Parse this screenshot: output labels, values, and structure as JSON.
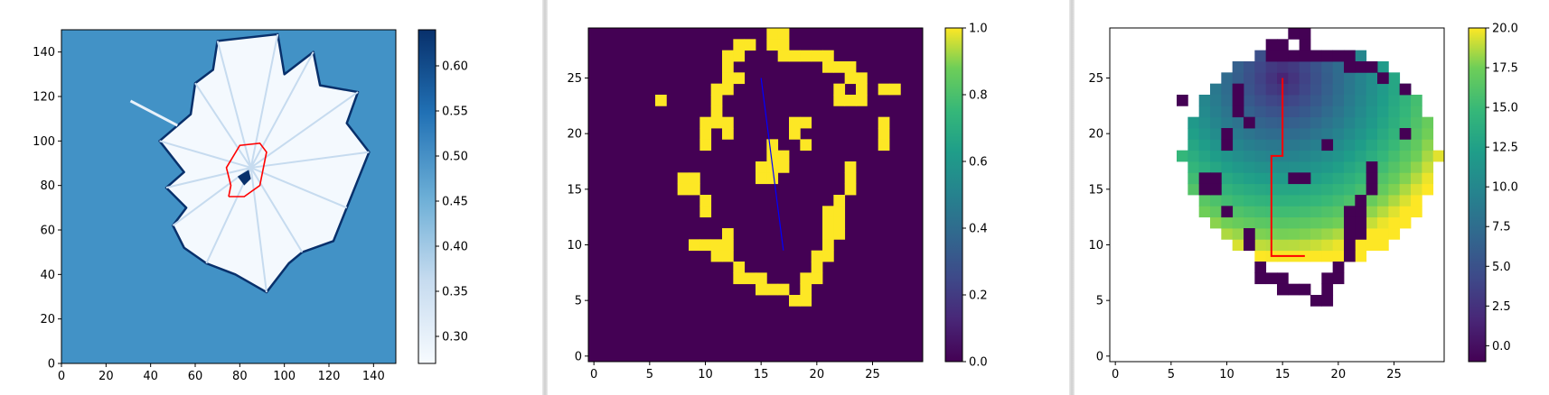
{
  "chart_data": [
    {
      "type": "heatmap",
      "title": "",
      "xlabel": "",
      "ylabel": "",
      "xlim": [
        0,
        150
      ],
      "ylim": [
        0,
        150
      ],
      "xticks": [
        "0",
        "20",
        "40",
        "60",
        "80",
        "100",
        "120",
        "140"
      ],
      "yticks": [
        "0",
        "20",
        "40",
        "60",
        "80",
        "100",
        "120",
        "140"
      ],
      "colormap": "Blues",
      "colorbar": {
        "range": [
          0.27,
          0.64
        ],
        "ticks": [
          "0.30",
          "0.35",
          "0.40",
          "0.45",
          "0.50",
          "0.55",
          "0.60"
        ]
      },
      "background_value": 0.5,
      "colors": {
        "background": "#4292c6",
        "free": "#f4f9fe",
        "obstacle": "#08306b",
        "path": "#ff0000"
      },
      "free_region": [
        [
          70,
          145
        ],
        [
          97,
          148
        ],
        [
          100,
          130
        ],
        [
          113,
          140
        ],
        [
          116,
          125
        ],
        [
          133,
          122
        ],
        [
          128,
          108
        ],
        [
          138,
          95
        ],
        [
          128,
          70
        ],
        [
          122,
          55
        ],
        [
          108,
          50
        ],
        [
          102,
          45
        ],
        [
          92,
          32
        ],
        [
          78,
          40
        ],
        [
          65,
          45
        ],
        [
          55,
          52
        ],
        [
          50,
          62
        ],
        [
          56,
          70
        ],
        [
          47,
          79
        ],
        [
          55,
          86
        ],
        [
          44,
          100
        ],
        [
          58,
          112
        ],
        [
          60,
          126
        ],
        [
          68,
          132
        ]
      ],
      "laser_ray": [
        [
          31,
          118
        ],
        [
          52,
          107
        ]
      ],
      "center_obstacle": [
        [
          79,
          84
        ],
        [
          84,
          87
        ],
        [
          85,
          83
        ],
        [
          82,
          80
        ]
      ],
      "path": [
        [
          75,
          75
        ],
        [
          82,
          75
        ],
        [
          89,
          80
        ],
        [
          92,
          95
        ],
        [
          89,
          99
        ],
        [
          80,
          98
        ],
        [
          74,
          88
        ],
        [
          76,
          80
        ],
        [
          75,
          75
        ]
      ]
    },
    {
      "type": "heatmap",
      "title": "",
      "xlabel": "",
      "ylabel": "",
      "xlim": [
        0,
        30
      ],
      "ylim": [
        0,
        30
      ],
      "xticks": [
        "0",
        "5",
        "10",
        "15",
        "20",
        "25"
      ],
      "yticks": [
        "0",
        "5",
        "10",
        "15",
        "20",
        "25"
      ],
      "colormap": "viridis",
      "colorbar": {
        "range": [
          0,
          1
        ],
        "ticks": [
          "0.0",
          "0.2",
          "0.4",
          "0.6",
          "0.8",
          "1.0"
        ]
      },
      "colors": {
        "low": "#440154",
        "high": "#fde725",
        "line": "#0000ff"
      },
      "ones": [
        [
          16,
          29
        ],
        [
          17,
          29
        ],
        [
          13,
          28
        ],
        [
          14,
          28
        ],
        [
          16,
          28
        ],
        [
          17,
          28
        ],
        [
          12,
          27
        ],
        [
          13,
          27
        ],
        [
          17,
          27
        ],
        [
          18,
          27
        ],
        [
          19,
          27
        ],
        [
          20,
          27
        ],
        [
          21,
          27
        ],
        [
          12,
          26
        ],
        [
          21,
          26
        ],
        [
          22,
          26
        ],
        [
          23,
          26
        ],
        [
          12,
          25
        ],
        [
          13,
          25
        ],
        [
          23,
          25
        ],
        [
          24,
          25
        ],
        [
          12,
          24
        ],
        [
          24,
          24
        ],
        [
          26,
          24
        ],
        [
          27,
          24
        ],
        [
          6,
          23
        ],
        [
          11,
          24
        ],
        [
          11,
          23
        ],
        [
          22,
          24
        ],
        [
          22,
          23
        ],
        [
          23,
          23
        ],
        [
          24,
          23
        ],
        [
          11,
          22
        ],
        [
          11,
          21
        ],
        [
          10,
          21
        ],
        [
          12,
          21
        ],
        [
          18,
          21
        ],
        [
          19,
          21
        ],
        [
          26,
          21
        ],
        [
          10,
          20
        ],
        [
          12,
          20
        ],
        [
          18,
          20
        ],
        [
          26,
          20
        ],
        [
          10,
          19
        ],
        [
          16,
          19
        ],
        [
          19,
          19
        ],
        [
          26,
          19
        ],
        [
          16,
          18
        ],
        [
          17,
          18
        ],
        [
          15,
          17
        ],
        [
          16,
          17
        ],
        [
          17,
          17
        ],
        [
          15,
          16
        ],
        [
          16,
          16
        ],
        [
          23,
          17
        ],
        [
          8,
          16
        ],
        [
          9,
          16
        ],
        [
          23,
          16
        ],
        [
          8,
          15
        ],
        [
          9,
          15
        ],
        [
          23,
          15
        ],
        [
          22,
          14
        ],
        [
          10,
          14
        ],
        [
          21,
          13
        ],
        [
          22,
          13
        ],
        [
          21,
          12
        ],
        [
          22,
          12
        ],
        [
          10,
          13
        ],
        [
          21,
          11
        ],
        [
          22,
          11
        ],
        [
          12,
          11
        ],
        [
          21,
          10
        ],
        [
          9,
          10
        ],
        [
          10,
          10
        ],
        [
          11,
          10
        ],
        [
          12,
          10
        ],
        [
          21,
          9
        ],
        [
          11,
          9
        ],
        [
          12,
          9
        ],
        [
          20,
          9
        ],
        [
          13,
          8
        ],
        [
          20,
          8
        ],
        [
          13,
          7
        ],
        [
          14,
          7
        ],
        [
          15,
          7
        ],
        [
          19,
          7
        ],
        [
          20,
          7
        ],
        [
          15,
          6
        ],
        [
          16,
          6
        ],
        [
          17,
          6
        ],
        [
          19,
          6
        ],
        [
          18,
          5
        ],
        [
          19,
          5
        ]
      ],
      "line": [
        [
          15,
          25
        ],
        [
          17,
          9.5
        ]
      ]
    },
    {
      "type": "heatmap",
      "title": "",
      "xlabel": "",
      "ylabel": "",
      "xlim": [
        0,
        30
      ],
      "ylim": [
        0,
        30
      ],
      "xticks": [
        "0",
        "5",
        "10",
        "15",
        "20",
        "25"
      ],
      "yticks": [
        "0",
        "5",
        "10",
        "15",
        "20",
        "25"
      ],
      "colormap": "viridis",
      "colorbar": {
        "range": [
          -1,
          20
        ],
        "ticks": [
          "0.0",
          "2.5",
          "5.0",
          "7.5",
          "10.0",
          "12.5",
          "15.0",
          "17.5",
          "20.0"
        ]
      },
      "colors": {
        "path": "#ff0000",
        "wall": "#440154"
      },
      "cost_center": [
        15,
        25
      ],
      "walls": [
        [
          16,
          29
        ],
        [
          17,
          29
        ],
        [
          14,
          28
        ],
        [
          15,
          28
        ],
        [
          17,
          28
        ],
        [
          14,
          27
        ],
        [
          15,
          27
        ],
        [
          16,
          27
        ],
        [
          17,
          27
        ],
        [
          18,
          27
        ],
        [
          19,
          27
        ],
        [
          20,
          27
        ],
        [
          21,
          27
        ],
        [
          21,
          26
        ],
        [
          22,
          26
        ],
        [
          23,
          26
        ],
        [
          24,
          25
        ],
        [
          26,
          24
        ],
        [
          6,
          23
        ],
        [
          11,
          24
        ],
        [
          11,
          23
        ],
        [
          11,
          22
        ],
        [
          12,
          21
        ],
        [
          10,
          20
        ],
        [
          10,
          19
        ],
        [
          19,
          19
        ],
        [
          23,
          17
        ],
        [
          8,
          16
        ],
        [
          9,
          16
        ],
        [
          8,
          15
        ],
        [
          9,
          15
        ],
        [
          16,
          16
        ],
        [
          17,
          16
        ],
        [
          23,
          16
        ],
        [
          23,
          15
        ],
        [
          22,
          14
        ],
        [
          21,
          13
        ],
        [
          22,
          13
        ],
        [
          21,
          12
        ],
        [
          22,
          12
        ],
        [
          10,
          13
        ],
        [
          21,
          11
        ],
        [
          22,
          11
        ],
        [
          12,
          11
        ],
        [
          21,
          10
        ],
        [
          12,
          10
        ],
        [
          21,
          9
        ],
        [
          13,
          8
        ],
        [
          20,
          8
        ],
        [
          13,
          7
        ],
        [
          14,
          7
        ],
        [
          15,
          7
        ],
        [
          19,
          7
        ],
        [
          20,
          7
        ],
        [
          15,
          6
        ],
        [
          16,
          6
        ],
        [
          17,
          6
        ],
        [
          19,
          6
        ],
        [
          18,
          5
        ],
        [
          19,
          5
        ],
        [
          26,
          20
        ]
      ],
      "path": [
        [
          15,
          25
        ],
        [
          15,
          18
        ],
        [
          14,
          18
        ],
        [
          14,
          9
        ],
        [
          17,
          9
        ]
      ]
    }
  ]
}
